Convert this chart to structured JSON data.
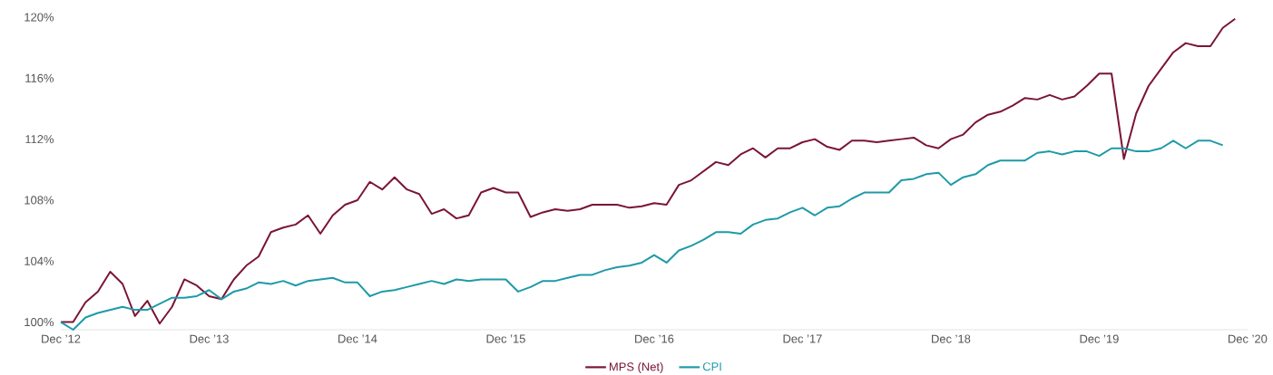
{
  "chart_data": {
    "type": "line",
    "x": [
      "2012-12",
      "2013-01",
      "2013-02",
      "2013-03",
      "2013-04",
      "2013-05",
      "2013-06",
      "2013-07",
      "2013-08",
      "2013-09",
      "2013-10",
      "2013-11",
      "2013-12",
      "2014-01",
      "2014-02",
      "2014-03",
      "2014-04",
      "2014-05",
      "2014-06",
      "2014-07",
      "2014-08",
      "2014-09",
      "2014-10",
      "2014-11",
      "2014-12",
      "2015-01",
      "2015-02",
      "2015-03",
      "2015-04",
      "2015-05",
      "2015-06",
      "2015-07",
      "2015-08",
      "2015-09",
      "2015-10",
      "2015-11",
      "2015-12",
      "2016-01",
      "2016-02",
      "2016-03",
      "2016-04",
      "2016-05",
      "2016-06",
      "2016-07",
      "2016-08",
      "2016-09",
      "2016-10",
      "2016-11",
      "2016-12",
      "2017-01",
      "2017-02",
      "2017-03",
      "2017-04",
      "2017-05",
      "2017-06",
      "2017-07",
      "2017-08",
      "2017-09",
      "2017-10",
      "2017-11",
      "2017-12",
      "2018-01",
      "2018-02",
      "2018-03",
      "2018-04",
      "2018-05",
      "2018-06",
      "2018-07",
      "2018-08",
      "2018-09",
      "2018-10",
      "2018-11",
      "2018-12",
      "2019-01",
      "2019-02",
      "2019-03",
      "2019-04",
      "2019-05",
      "2019-06",
      "2019-07",
      "2019-08",
      "2019-09",
      "2019-10",
      "2019-11",
      "2019-12",
      "2020-01",
      "2020-02",
      "2020-03",
      "2020-04",
      "2020-05",
      "2020-06",
      "2020-07",
      "2020-08",
      "2020-09",
      "2020-10",
      "2020-11"
    ],
    "series": [
      {
        "name": "MPS (Net)",
        "color": "#7a1535",
        "values": [
          100.0,
          100.0,
          101.3,
          102.0,
          103.3,
          102.5,
          100.4,
          101.4,
          99.9,
          101.0,
          102.8,
          102.4,
          101.7,
          101.5,
          102.8,
          103.7,
          104.3,
          105.9,
          106.2,
          106.4,
          107.0,
          105.8,
          107.0,
          107.7,
          108.0,
          109.2,
          108.7,
          109.5,
          108.7,
          108.4,
          107.1,
          107.4,
          106.8,
          107.0,
          108.5,
          108.8,
          108.5,
          108.5,
          106.9,
          107.2,
          107.4,
          107.3,
          107.4,
          107.7,
          107.7,
          107.7,
          107.5,
          107.6,
          107.8,
          107.7,
          109.0,
          109.3,
          109.9,
          110.5,
          110.3,
          111.0,
          111.4,
          110.8,
          111.4,
          111.4,
          111.8,
          112.0,
          111.5,
          111.3,
          111.9,
          111.9,
          111.8,
          111.9,
          112.0,
          112.1,
          111.6,
          111.4,
          112.0,
          112.3,
          113.1,
          113.6,
          113.8,
          114.2,
          114.7,
          114.6,
          114.9,
          114.6,
          114.8,
          115.5,
          116.3,
          116.3,
          110.7,
          113.7,
          115.5,
          116.6,
          117.7,
          118.3,
          118.1,
          118.1,
          119.3,
          119.9
        ]
      },
      {
        "name": "CPI",
        "color": "#1e9aa8",
        "values": [
          100.0,
          99.5,
          100.3,
          100.6,
          100.8,
          101.0,
          100.8,
          100.8,
          101.2,
          101.6,
          101.6,
          101.7,
          102.1,
          101.5,
          102.0,
          102.2,
          102.6,
          102.5,
          102.7,
          102.4,
          102.7,
          102.8,
          102.9,
          102.6,
          102.6,
          101.7,
          102.0,
          102.1,
          102.3,
          102.5,
          102.7,
          102.5,
          102.8,
          102.7,
          102.8,
          102.8,
          102.8,
          102.0,
          102.3,
          102.7,
          102.7,
          102.9,
          103.1,
          103.1,
          103.4,
          103.6,
          103.7,
          103.9,
          104.4,
          103.9,
          104.7,
          105.0,
          105.4,
          105.9,
          105.9,
          105.8,
          106.4,
          106.7,
          106.8,
          107.2,
          107.5,
          107.0,
          107.5,
          107.6,
          108.1,
          108.5,
          108.5,
          108.5,
          109.3,
          109.4,
          109.7,
          109.8,
          109.0,
          109.5,
          109.7,
          110.3,
          110.6,
          110.6,
          110.6,
          111.1,
          111.2,
          111.0,
          111.2,
          111.2,
          110.9,
          111.4,
          111.4,
          111.2,
          111.2,
          111.4,
          111.9,
          111.4,
          111.9,
          111.9,
          111.6,
          null
        ]
      }
    ],
    "xlim": [
      "2012-12",
      "2020-12"
    ],
    "xticks": [
      {
        "value": "2012-12",
        "label": "Dec ’12"
      },
      {
        "value": "2013-12",
        "label": "Dec ’13"
      },
      {
        "value": "2014-12",
        "label": "Dec ’14"
      },
      {
        "value": "2015-12",
        "label": "Dec ’15"
      },
      {
        "value": "2016-12",
        "label": "Dec ’16"
      },
      {
        "value": "2017-12",
        "label": "Dec ’17"
      },
      {
        "value": "2018-12",
        "label": "Dec ’18"
      },
      {
        "value": "2019-12",
        "label": "Dec ’19"
      },
      {
        "value": "2020-12",
        "label": "Dec ’20"
      }
    ],
    "ylim": [
      99.5,
      120
    ],
    "yticks": [
      {
        "value": 100,
        "label": "100%"
      },
      {
        "value": 104,
        "label": "104%"
      },
      {
        "value": 108,
        "label": "108%"
      },
      {
        "value": 112,
        "label": "112%"
      },
      {
        "value": 116,
        "label": "116%"
      },
      {
        "value": 120,
        "label": "120%"
      }
    ],
    "legend": "bottom"
  }
}
